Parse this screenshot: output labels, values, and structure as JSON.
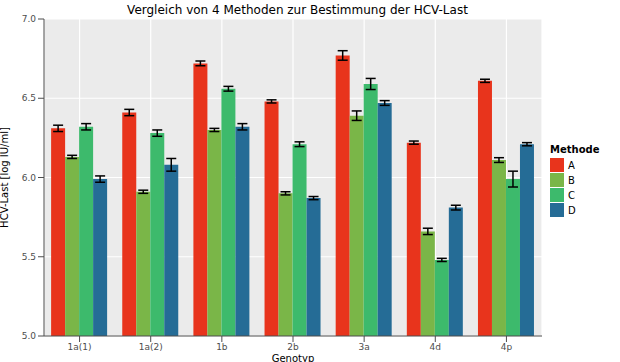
{
  "chart_data": {
    "type": "bar",
    "title": "Vergleich von 4 Methoden zur Bestimmung der HCV-Last",
    "x_label": "Genotyp",
    "y_label": "HCV-Last [log IU/ml]",
    "legend_title": "Methode",
    "categories": [
      "1a(1)",
      "1a(2)",
      "1b",
      "2b",
      "3a",
      "4d",
      "4p"
    ],
    "series": [
      {
        "name": "A",
        "color": "#E8341C",
        "values": [
          6.31,
          6.41,
          6.72,
          6.48,
          6.77,
          6.22,
          6.61
        ],
        "errors": [
          0.02,
          0.02,
          0.015,
          0.01,
          0.03,
          0.01,
          0.01
        ]
      },
      {
        "name": "B",
        "color": "#7AB648",
        "values": [
          6.13,
          5.91,
          6.3,
          5.9,
          6.39,
          5.66,
          6.11
        ],
        "errors": [
          0.01,
          0.01,
          0.01,
          0.01,
          0.03,
          0.02,
          0.015
        ]
      },
      {
        "name": "C",
        "color": "#3DBA6C",
        "values": [
          6.32,
          6.28,
          6.56,
          6.21,
          6.59,
          5.48,
          5.99
        ],
        "errors": [
          0.02,
          0.02,
          0.015,
          0.015,
          0.035,
          0.01,
          0.05
        ]
      },
      {
        "name": "D",
        "color": "#256C96",
        "values": [
          5.99,
          6.08,
          6.32,
          5.87,
          6.47,
          5.81,
          6.21
        ],
        "errors": [
          0.02,
          0.04,
          0.02,
          0.01,
          0.015,
          0.015,
          0.01
        ]
      }
    ],
    "ylim": [
      5,
      7
    ],
    "yticks": [
      {
        "value": 5,
        "label": "5.0"
      },
      5.5,
      {
        "value": 6,
        "label": "6.0"
      },
      6.5,
      {
        "value": 7,
        "label": "7.0"
      }
    ],
    "grid": true,
    "legend": "right"
  }
}
